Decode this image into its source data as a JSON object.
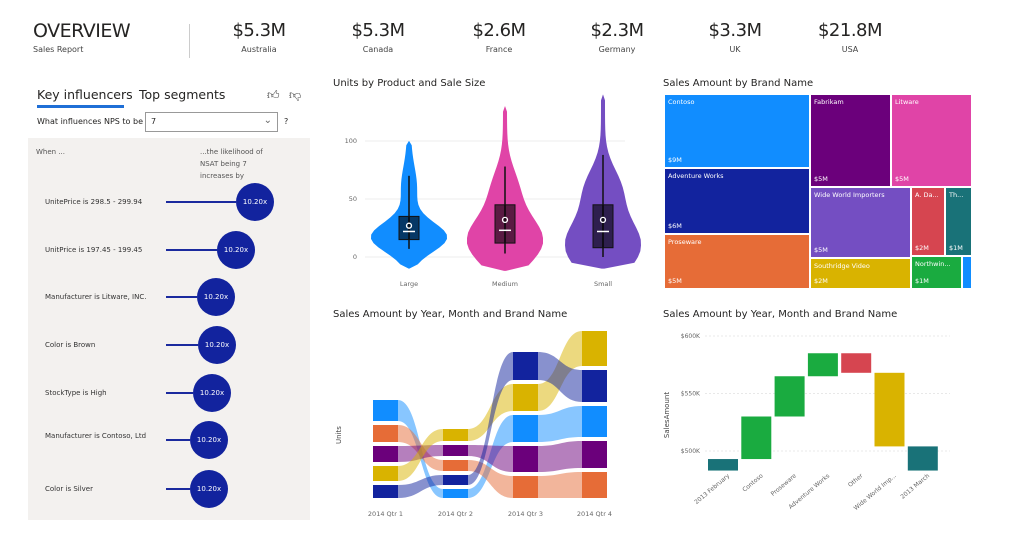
{
  "header": {
    "title": "OVERVIEW",
    "subtitle": "Sales Report",
    "kpis": [
      {
        "value": "$5.3M",
        "label": "Australia"
      },
      {
        "value": "$5.3M",
        "label": "Canada"
      },
      {
        "value": "$2.6M",
        "label": "France"
      },
      {
        "value": "$2.3M",
        "label": "Germany"
      },
      {
        "value": "$3.3M",
        "label": "UK"
      },
      {
        "value": "$21.8M",
        "label": "USA"
      }
    ]
  },
  "key_influencers": {
    "tabs": [
      "Key influencers",
      "Top segments"
    ],
    "question": "What influences NPS to be",
    "selected": "7",
    "help": "?",
    "col_when": "When ...",
    "col_effect": "...the likelihood of NSAT being 7 increases by",
    "rows": [
      {
        "label": "UnitePrice is 298.5 - 299.94",
        "value": "10.20x"
      },
      {
        "label": "UnitPrice is 197.45 - 199.45",
        "value": "10.20x"
      },
      {
        "label": "Manufacturer is Litware, INC.",
        "value": "10.20x"
      },
      {
        "label": "Color is Brown",
        "value": "10.20x"
      },
      {
        "label": "StockType is High",
        "value": "10.20x"
      },
      {
        "label": "Manufacturer is Contoso, Ltd",
        "value": "10.20x"
      },
      {
        "label": "Color is Silver",
        "value": "10.20x"
      }
    ]
  },
  "chart_data": [
    {
      "type": "violin",
      "title": "Units by Product and Sale Size",
      "yticks": [
        "0",
        "50",
        "100"
      ],
      "ylim": [
        -12,
        145
      ],
      "categories": [
        "Large",
        "Medium",
        "Small"
      ],
      "colors": [
        "#118DFF",
        "#E044A7",
        "#744EC2"
      ],
      "stats": [
        {
          "min": 7,
          "q1": 15,
          "median": 22,
          "mean": 27,
          "q3": 35,
          "max": 70,
          "range": [
            -10,
            100
          ]
        },
        {
          "min": 3,
          "q1": 12,
          "median": 23,
          "mean": 32,
          "q3": 45,
          "max": 78,
          "range": [
            -12,
            130
          ]
        },
        {
          "min": 0,
          "q1": 8,
          "median": 22,
          "mean": 32,
          "q3": 45,
          "max": 88,
          "range": [
            -10,
            140
          ]
        }
      ]
    },
    {
      "type": "treemap",
      "title": "Sales Amount by Brand Name",
      "items": [
        {
          "name": "Contoso",
          "label": "$9M",
          "color": "#118DFF"
        },
        {
          "name": "Adventure Works",
          "label": "$6M",
          "color": "#12239E"
        },
        {
          "name": "Proseware",
          "label": "$5M",
          "color": "#E66C37"
        },
        {
          "name": "Fabrikam",
          "label": "$5M",
          "color": "#6B007B"
        },
        {
          "name": "Litware",
          "label": "$5M",
          "color": "#E044A7"
        },
        {
          "name": "Wide World Importers",
          "label": "$5M",
          "color": "#744EC2"
        },
        {
          "name": "A. Da...",
          "label": "$2M",
          "color": "#D64550"
        },
        {
          "name": "Th...",
          "label": "$1M",
          "color": "#197278"
        },
        {
          "name": "Southridge Video",
          "label": "$2M",
          "color": "#D9B300"
        },
        {
          "name": "Northwin...",
          "label": "$1M",
          "color": "#1AAB40"
        },
        {
          "name": "",
          "label": "",
          "color": "#118DFF"
        }
      ]
    },
    {
      "type": "ribbon",
      "title": "Sales Amount by Year, Month and Brand Name",
      "ylabel": "Units",
      "categories": [
        "2014 Qtr 1",
        "2014 Qtr 2",
        "2014 Qtr 3",
        "2014 Qtr 4"
      ],
      "series": [
        {
          "color": "#118DFF",
          "values": [
            21,
            9,
            27,
            31
          ]
        },
        {
          "color": "#E66C37",
          "values": [
            17,
            11,
            22,
            26
          ]
        },
        {
          "color": "#6B007B",
          "values": [
            16,
            11,
            26,
            27
          ]
        },
        {
          "color": "#D9B300",
          "values": [
            15,
            12,
            27,
            35
          ]
        },
        {
          "color": "#12239E",
          "values": [
            13,
            10,
            28,
            32
          ]
        }
      ]
    },
    {
      "type": "waterfall",
      "title": "Sales Amount by Year, Month and Brand Name",
      "ylabel": "SalesAmount",
      "yticks": [
        {
          "v": 500,
          "label": "$500K"
        },
        {
          "v": 550,
          "label": "$550K"
        },
        {
          "v": 600,
          "label": "$600K"
        }
      ],
      "ylim": [
        480,
        605
      ],
      "bars": [
        {
          "label": "2013 February",
          "start": 483,
          "end": 493,
          "color": "#197278"
        },
        {
          "label": "Contoso",
          "start": 493,
          "end": 530,
          "color": "#1AAB40"
        },
        {
          "label": "Proseware",
          "start": 530,
          "end": 565,
          "color": "#1AAB40"
        },
        {
          "label": "Adventure Works",
          "start": 565,
          "end": 585,
          "color": "#1AAB40"
        },
        {
          "label": "Other",
          "start": 585,
          "end": 568,
          "color": "#D64550"
        },
        {
          "label": "Wide World Imp...",
          "start": 568,
          "end": 504,
          "color": "#D9B300"
        },
        {
          "label": "2013 March",
          "start": 504,
          "end": 483,
          "color": "#197278"
        }
      ]
    }
  ]
}
